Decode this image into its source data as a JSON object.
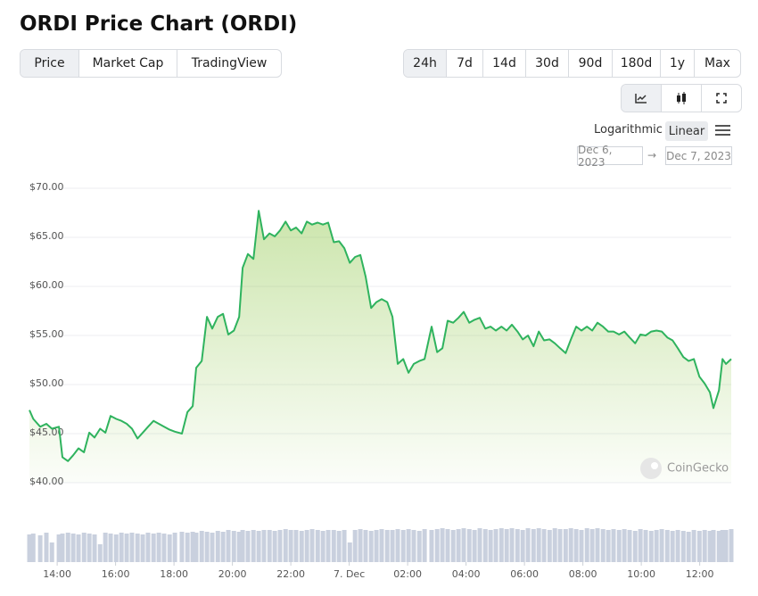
{
  "header": {
    "title": "ORDI Price Chart (ORDI)"
  },
  "tabs": [
    "Price",
    "Market Cap",
    "TradingView"
  ],
  "ranges": [
    "24h",
    "7d",
    "14d",
    "30d",
    "90d",
    "180d",
    "1y",
    "Max"
  ],
  "scale_options": [
    "Logarithmic",
    "Linear"
  ],
  "date_range": {
    "from": "Dec 6, 2023",
    "arrow": "→",
    "to": "Dec 7, 2023"
  },
  "watermark": "CoinGecko",
  "chart_data": {
    "type": "line",
    "x": [
      13.05,
      13.18,
      13.42,
      13.63,
      13.82,
      14.06,
      14.18,
      14.37,
      14.55,
      14.73,
      14.92,
      15.1,
      15.28,
      15.47,
      15.65,
      15.83,
      16.02,
      16.2,
      16.38,
      16.56,
      16.75,
      16.93,
      17.11,
      17.3,
      17.48,
      17.66,
      17.85,
      18.03,
      18.27,
      18.46,
      18.64,
      18.76,
      18.95,
      19.13,
      19.31,
      19.5,
      19.68,
      19.86,
      20.05,
      20.23,
      20.35,
      20.53,
      20.72,
      20.9,
      21.08,
      21.27,
      21.45,
      21.63,
      21.82,
      22.0,
      22.18,
      22.37,
      22.55,
      22.73,
      22.92,
      23.1,
      23.28,
      23.47,
      23.65,
      23.83,
      24.02,
      24.2,
      24.38,
      24.56,
      24.75,
      24.93,
      25.11,
      25.3,
      25.48,
      25.66,
      25.85,
      26.03,
      26.21,
      26.4,
      26.58,
      26.82,
      27.01,
      27.19,
      27.37,
      27.56,
      27.74,
      27.92,
      28.11,
      28.29,
      28.47,
      28.66,
      28.84,
      29.02,
      29.21,
      29.39,
      29.57,
      29.76,
      29.94,
      30.12,
      30.31,
      30.49,
      30.67,
      30.86,
      31.04,
      31.22,
      31.41,
      31.59,
      31.77,
      31.95,
      32.14,
      32.32,
      32.5,
      32.69,
      32.87,
      33.05,
      33.24,
      33.42,
      33.6,
      33.79,
      33.97,
      34.15,
      34.34,
      34.52,
      34.7,
      34.89,
      35.07,
      35.25,
      35.44,
      35.62,
      35.8,
      35.99,
      36.17,
      36.35,
      36.47,
      36.66,
      36.78,
      36.9,
      37.08
    ],
    "series": [
      {
        "name": "Price",
        "color": "#2fb35e",
        "values": [
          47.4,
          46.5,
          45.7,
          46,
          45.5,
          45.7,
          42.6,
          42.2,
          42.8,
          43.5,
          43.1,
          45.1,
          44.6,
          45.5,
          45.1,
          46.8,
          46.5,
          46.3,
          46,
          45.5,
          44.5,
          45.1,
          45.7,
          46.3,
          46,
          45.7,
          45.4,
          45.2,
          45,
          47.2,
          47.8,
          51.7,
          52.4,
          56.9,
          55.7,
          56.9,
          57.2,
          55.1,
          55.5,
          56.9,
          61.9,
          63.3,
          62.8,
          67.7,
          64.8,
          65.4,
          65.1,
          65.7,
          66.6,
          65.7,
          66,
          65.4,
          66.6,
          66.3,
          66.5,
          66.3,
          66.5,
          64.5,
          64.6,
          63.9,
          62.4,
          63,
          63.2,
          61,
          57.8,
          58.4,
          58.7,
          58.4,
          56.9,
          52.1,
          52.6,
          51.2,
          52.1,
          52.4,
          52.6,
          55.9,
          53.3,
          53.7,
          56.5,
          56.3,
          56.8,
          57.4,
          56.3,
          56.6,
          56.8,
          55.7,
          55.9,
          55.5,
          55.9,
          55.5,
          56.1,
          55.4,
          54.6,
          55,
          53.9,
          55.4,
          54.5,
          54.6,
          54.2,
          53.7,
          53.2,
          54.6,
          55.9,
          55.5,
          55.9,
          55.5,
          56.3,
          55.9,
          55.4,
          55.4,
          55.1,
          55.4,
          54.8,
          54.2,
          55.1,
          55,
          55.4,
          55.5,
          55.4,
          54.8,
          54.5,
          53.7,
          52.8,
          52.4,
          52.6,
          50.8,
          50.1,
          49.2,
          47.6,
          49.4,
          52.6,
          52.1,
          52.6
        ]
      }
    ],
    "volume": {
      "color": "#c9d0de",
      "values": [
        31,
        32,
        30,
        33,
        22,
        31,
        32,
        33,
        32,
        31,
        33,
        32,
        31,
        20,
        33,
        32,
        31,
        33,
        32,
        33,
        32,
        31,
        33,
        32,
        33,
        32,
        31,
        33,
        34,
        33,
        34,
        33,
        35,
        34,
        33,
        35,
        34,
        36,
        35,
        34,
        36,
        35,
        36,
        35,
        36,
        36,
        35,
        36,
        37,
        36,
        36,
        35,
        36,
        37,
        36,
        35,
        36,
        36,
        35,
        36,
        22,
        36,
        37,
        36,
        35,
        36,
        37,
        36,
        36,
        37,
        36,
        37,
        36,
        35,
        37,
        36,
        37,
        38,
        37,
        36,
        37,
        38,
        37,
        36,
        38,
        37,
        36,
        37,
        38,
        37,
        38,
        37,
        36,
        38,
        37,
        38,
        37,
        36,
        38,
        37,
        37,
        38,
        37,
        36,
        38,
        37,
        38,
        37,
        36,
        37,
        36,
        37,
        36,
        35,
        37,
        36,
        35,
        36,
        37,
        36,
        35,
        36,
        35,
        34,
        36,
        35,
        36,
        35,
        36,
        35,
        36,
        36,
        37
      ]
    },
    "xlim": [
      13.05,
      37.08
    ],
    "xticks": [
      {
        "value": 14,
        "label": "14:00"
      },
      {
        "value": 16,
        "label": "16:00"
      },
      {
        "value": 18,
        "label": "18:00"
      },
      {
        "value": 20,
        "label": "20:00"
      },
      {
        "value": 22,
        "label": "22:00"
      },
      {
        "value": 24,
        "label": "7. Dec"
      },
      {
        "value": 26,
        "label": "02:00"
      },
      {
        "value": 28,
        "label": "04:00"
      },
      {
        "value": 30,
        "label": "06:00"
      },
      {
        "value": 32,
        "label": "08:00"
      },
      {
        "value": 34,
        "label": "10:00"
      },
      {
        "value": 36,
        "label": "12:00"
      }
    ],
    "ylim": [
      40,
      70
    ],
    "yticks": [
      {
        "value": 40,
        "label": "$40.00"
      },
      {
        "value": 45,
        "label": "$45.00"
      },
      {
        "value": 50,
        "label": "$50.00"
      },
      {
        "value": 55,
        "label": "$55.00"
      },
      {
        "value": 60,
        "label": "$60.00"
      },
      {
        "value": 65,
        "label": "$65.00"
      },
      {
        "value": 70,
        "label": "$70.00"
      }
    ],
    "grid": true
  }
}
